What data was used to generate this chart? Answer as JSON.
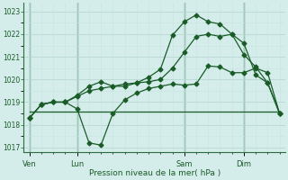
{
  "background_color": "#d4ecea",
  "grid_major_color": "#b8d8d4",
  "grid_minor_color": "#c8e4e0",
  "line_color": "#1a5c28",
  "tick_label_color": "#1a5c28",
  "xlabel": "Pression niveau de la mer( hPa )",
  "ylim": [
    1016.8,
    1023.4
  ],
  "yticks": [
    1017,
    1018,
    1019,
    1020,
    1021,
    1022,
    1023
  ],
  "xtick_labels": [
    "Ven",
    "Lun",
    "Sam",
    "Dim"
  ],
  "xtick_positions": [
    0,
    4,
    13,
    18
  ],
  "total_points": 22,
  "xlim": [
    -0.5,
    21.5
  ],
  "series_flat": [
    1018.6,
    1018.6,
    1018.6,
    1018.6,
    1018.6,
    1018.6,
    1018.6,
    1018.6,
    1018.6,
    1018.6,
    1018.6,
    1018.6,
    1018.6,
    1018.6,
    1018.6,
    1018.6,
    1018.6,
    1018.6,
    1018.6,
    1018.6,
    1018.6,
    1018.6
  ],
  "series_main": [
    1018.3,
    1018.9,
    1019.0,
    1019.0,
    1018.7,
    1017.2,
    1017.1,
    1018.5,
    1019.1,
    1019.4,
    1019.6,
    1019.7,
    1019.8,
    1019.75,
    1019.8,
    1020.6,
    1020.55,
    1020.3,
    1020.3,
    1020.5,
    1020.3,
    1018.5
  ],
  "series_mid": [
    1018.3,
    1018.9,
    1019.0,
    1019.0,
    1019.25,
    1019.5,
    1019.6,
    1019.7,
    1019.8,
    1019.85,
    1019.9,
    1020.0,
    1020.5,
    1021.2,
    1021.9,
    1022.0,
    1021.9,
    1022.0,
    1021.6,
    1020.2,
    1019.85,
    1018.5
  ],
  "series_top": [
    1018.3,
    1018.9,
    1019.0,
    1019.0,
    1019.3,
    1019.7,
    1019.9,
    1019.7,
    1019.7,
    1019.85,
    1020.1,
    1020.45,
    1021.95,
    1022.55,
    1022.85,
    1022.55,
    1022.45,
    1022.0,
    1021.1,
    1020.55,
    1019.85,
    1018.5
  ],
  "vline_positions": [
    0,
    4,
    13,
    18
  ],
  "vline_color": "#2d6e3e"
}
